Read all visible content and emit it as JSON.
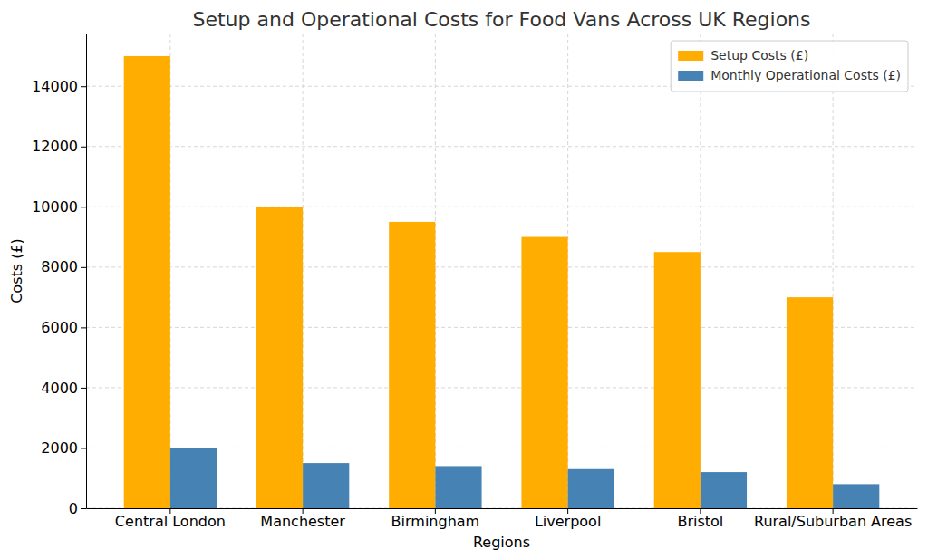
{
  "chart_data": {
    "type": "bar",
    "title": "Setup and Operational Costs for Food Vans Across UK Regions",
    "x_label": "Regions",
    "y_label": "Costs (£)",
    "categories": [
      "Central London",
      "Manchester",
      "Birmingham",
      "Liverpool",
      "Bristol",
      "Rural/Suburban Areas"
    ],
    "series": [
      {
        "name": "Setup Costs (£)",
        "color": "#ffad00",
        "values": [
          15000,
          10000,
          9500,
          9000,
          8500,
          7000
        ]
      },
      {
        "name": "Monthly Operational Costs (£)",
        "color": "#4682b4",
        "values": [
          2000,
          1500,
          1400,
          1300,
          1200,
          800
        ]
      }
    ],
    "ylim": [
      0,
      15750
    ],
    "yticks": [
      0,
      2000,
      4000,
      6000,
      8000,
      10000,
      12000,
      14000
    ],
    "grid": true,
    "legend": "upper right"
  }
}
